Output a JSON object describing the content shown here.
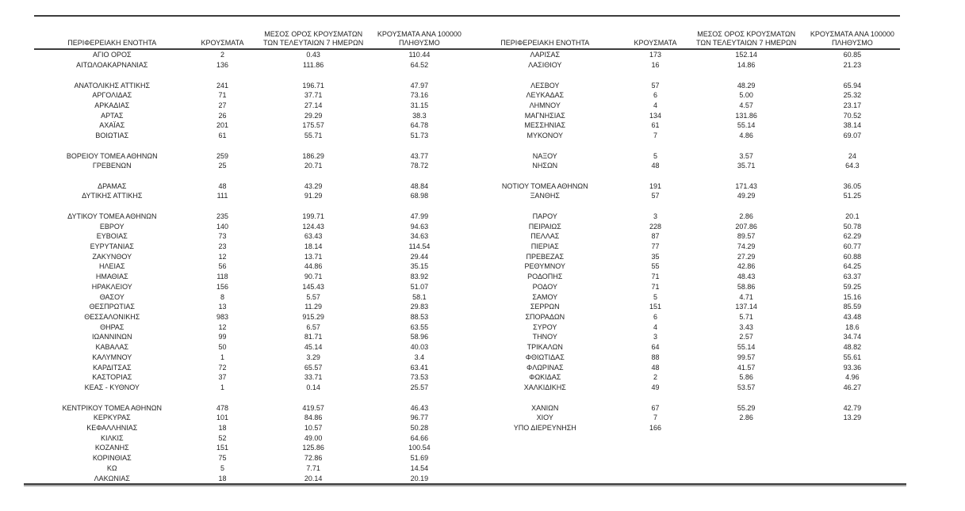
{
  "page": {
    "background": "#ffffff",
    "text_color": "#1f1f1f",
    "rule_color": "#3d3d3d"
  },
  "table": {
    "column_headers": [
      "ΠΕΡΙΦΕΡΕΙΑΚΗ ΕΝΟΤΗΤΑ",
      "ΚΡΟΥΣΜΑΤΑ",
      "ΜΕΣΟΣ ΟΡΟΣ ΚΡΟΥΣΜΑΤΩΝ\nΤΩΝ ΤΕΛΕΥΤΑΙΩΝ 7 ΗΜΕΡΩΝ",
      "ΚΡΟΥΣΜΑΤΑ ΑΝΑ 100000\nΠΛΗΘΥΣΜΟ"
    ],
    "left_rows": [
      [
        "ΑΓΙΟ ΟΡΟΣ",
        "2",
        "0.43",
        "110.44"
      ],
      [
        "ΑΙΤΩΛΟΑΚΑΡΝΑΝΙΑΣ",
        "136",
        "111.86",
        "64.52"
      ],
      [
        "",
        "",
        "",
        ""
      ],
      [
        "ΑΝΑΤΟΛΙΚΗΣ ΑΤΤΙΚΗΣ",
        "241",
        "196.71",
        "47.97"
      ],
      [
        "ΑΡΓΟΛΙΔΑΣ",
        "71",
        "37.71",
        "73.16"
      ],
      [
        "ΑΡΚΑΔΙΑΣ",
        "27",
        "27.14",
        "31.15"
      ],
      [
        "ΑΡΤΑΣ",
        "26",
        "29.29",
        "38.3"
      ],
      [
        "ΑΧΑΪΑΣ",
        "201",
        "175.57",
        "64.78"
      ],
      [
        "ΒΟΙΩΤΙΑΣ",
        "61",
        "55.71",
        "51.73"
      ],
      [
        "",
        "",
        "",
        ""
      ],
      [
        "ΒΟΡΕΙΟΥ ΤΟΜΕΑ ΑΘΗΝΩΝ",
        "259",
        "186.29",
        "43.77"
      ],
      [
        "ΓΡΕΒΕΝΩΝ",
        "25",
        "20.71",
        "78.72"
      ],
      [
        "",
        "",
        "",
        ""
      ],
      [
        "ΔΡΑΜΑΣ",
        "48",
        "43.29",
        "48.84"
      ],
      [
        "ΔΥΤΙΚΗΣ ΑΤΤΙΚΗΣ",
        "111",
        "91.29",
        "68.98"
      ],
      [
        "",
        "",
        "",
        ""
      ],
      [
        "ΔΥΤΙΚΟΥ ΤΟΜΕΑ ΑΘΗΝΩΝ",
        "235",
        "199.71",
        "47.99"
      ],
      [
        "ΕΒΡΟΥ",
        "140",
        "124.43",
        "94.63"
      ],
      [
        "ΕΥΒΟΙΑΣ",
        "73",
        "63.43",
        "34.63"
      ],
      [
        "ΕΥΡΥΤΑΝΙΑΣ",
        "23",
        "18.14",
        "114.54"
      ],
      [
        "ΖΑΚΥΝΘΟΥ",
        "12",
        "13.71",
        "29.44"
      ],
      [
        "ΗΛΕΙΑΣ",
        "56",
        "44.86",
        "35.15"
      ],
      [
        "ΗΜΑΘΙΑΣ",
        "118",
        "90.71",
        "83.92"
      ],
      [
        "ΗΡΑΚΛΕΙΟΥ",
        "156",
        "145.43",
        "51.07"
      ],
      [
        "ΘΑΣΟΥ",
        "8",
        "5.57",
        "58.1"
      ],
      [
        "ΘΕΣΠΡΩΤΙΑΣ",
        "13",
        "11.29",
        "29.83"
      ],
      [
        "ΘΕΣΣΑΛΟΝΙΚΗΣ",
        "983",
        "915.29",
        "88.53"
      ],
      [
        "ΘΗΡΑΣ",
        "12",
        "6.57",
        "63.55"
      ],
      [
        "ΙΩΑΝΝΙΝΩΝ",
        "99",
        "81.71",
        "58.96"
      ],
      [
        "ΚΑΒΑΛΑΣ",
        "50",
        "45.14",
        "40.03"
      ],
      [
        "ΚΑΛΥΜΝΟΥ",
        "1",
        "3.29",
        "3.4"
      ],
      [
        "ΚΑΡΔΙΤΣΑΣ",
        "72",
        "65.57",
        "63.41"
      ],
      [
        "ΚΑΣΤΟΡΙΑΣ",
        "37",
        "33.71",
        "73.53"
      ],
      [
        "ΚΕΑΣ - ΚΥΘΝΟΥ",
        "1",
        "0.14",
        "25.57"
      ],
      [
        "",
        "",
        "",
        ""
      ],
      [
        "ΚΕΝΤΡΙΚΟΥ ΤΟΜΕΑ ΑΘΗΝΩΝ",
        "478",
        "419.57",
        "46.43"
      ],
      [
        "ΚΕΡΚΥΡΑΣ",
        "101",
        "84.86",
        "96.77"
      ],
      [
        "ΚΕΦΑΛΛΗΝΙΑΣ",
        "18",
        "10.57",
        "50.28"
      ],
      [
        "ΚΙΛΚΙΣ",
        "52",
        "49.00",
        "64.66"
      ],
      [
        "ΚΟΖΑΝΗΣ",
        "151",
        "125.86",
        "100.54"
      ],
      [
        "ΚΟΡΙΝΘΙΑΣ",
        "75",
        "72.86",
        "51.69"
      ],
      [
        "ΚΩ",
        "5",
        "7.71",
        "14.54"
      ],
      [
        "ΛΑΚΩΝΙΑΣ",
        "18",
        "20.14",
        "20.19"
      ]
    ],
    "right_rows": [
      [
        "ΛΑΡΙΣΑΣ",
        "173",
        "152.14",
        "60.85"
      ],
      [
        "ΛΑΣΙΘΙΟΥ",
        "16",
        "14.86",
        "21.23"
      ],
      [
        "",
        "",
        "",
        ""
      ],
      [
        "ΛΕΣΒΟΥ",
        "57",
        "48.29",
        "65.94"
      ],
      [
        "ΛΕΥΚΑΔΑΣ",
        "6",
        "5.00",
        "25.32"
      ],
      [
        "ΛΗΜΝΟΥ",
        "4",
        "4.57",
        "23.17"
      ],
      [
        "ΜΑΓΝΗΣΙΑΣ",
        "134",
        "131.86",
        "70.52"
      ],
      [
        "ΜΕΣΣΗΝΙΑΣ",
        "61",
        "55.14",
        "38.14"
      ],
      [
        "ΜΥΚΟΝΟΥ",
        "7",
        "4.86",
        "69.07"
      ],
      [
        "",
        "",
        "",
        ""
      ],
      [
        "ΝΑΞΟΥ",
        "5",
        "3.57",
        "24"
      ],
      [
        "ΝΗΣΩΝ",
        "48",
        "35.71",
        "64.3"
      ],
      [
        "",
        "",
        "",
        ""
      ],
      [
        "ΝΟΤΙΟΥ ΤΟΜΕΑ ΑΘΗΝΩΝ",
        "191",
        "171.43",
        "36.05"
      ],
      [
        "ΞΑΝΘΗΣ",
        "57",
        "49.29",
        "51.25"
      ],
      [
        "",
        "",
        "",
        ""
      ],
      [
        "ΠΑΡΟΥ",
        "3",
        "2.86",
        "20.1"
      ],
      [
        "ΠΕΙΡΑΙΩΣ",
        "228",
        "207.86",
        "50.78"
      ],
      [
        "ΠΕΛΛΑΣ",
        "87",
        "89.57",
        "62.29"
      ],
      [
        "ΠΙΕΡΙΑΣ",
        "77",
        "74.29",
        "60.77"
      ],
      [
        "ΠΡΕΒΕΖΑΣ",
        "35",
        "27.29",
        "60.88"
      ],
      [
        "ΡΕΘΥΜΝΟΥ",
        "55",
        "42.86",
        "64.25"
      ],
      [
        "ΡΟΔΟΠΗΣ",
        "71",
        "48.43",
        "63.37"
      ],
      [
        "ΡΟΔΟΥ",
        "71",
        "58.86",
        "59.25"
      ],
      [
        "ΣΑΜΟΥ",
        "5",
        "4.71",
        "15.16"
      ],
      [
        "ΣΕΡΡΩΝ",
        "151",
        "137.14",
        "85.59"
      ],
      [
        "ΣΠΟΡΑΔΩΝ",
        "6",
        "5.71",
        "43.48"
      ],
      [
        "ΣΥΡΟΥ",
        "4",
        "3.43",
        "18.6"
      ],
      [
        "ΤΗΝΟΥ",
        "3",
        "2.57",
        "34.74"
      ],
      [
        "ΤΡΙΚΑΛΩΝ",
        "64",
        "55.14",
        "48.82"
      ],
      [
        "ΦΘΙΩΤΙΔΑΣ",
        "88",
        "99.57",
        "55.61"
      ],
      [
        "ΦΛΩΡΙΝΑΣ",
        "48",
        "41.57",
        "93.36"
      ],
      [
        "ΦΩΚΙΔΑΣ",
        "2",
        "5.86",
        "4.96"
      ],
      [
        "ΧΑΛΚΙΔΙΚΗΣ",
        "49",
        "53.57",
        "46.27"
      ],
      [
        "",
        "",
        "",
        ""
      ],
      [
        "ΧΑΝΙΩΝ",
        "67",
        "55.29",
        "42.79"
      ],
      [
        "ΧΙΟΥ",
        "7",
        "2.86",
        "13.29"
      ],
      [
        "ΥΠΟ ΔΙΕΡΕΥΝΗΣΗ",
        "166",
        "",
        ""
      ]
    ]
  }
}
